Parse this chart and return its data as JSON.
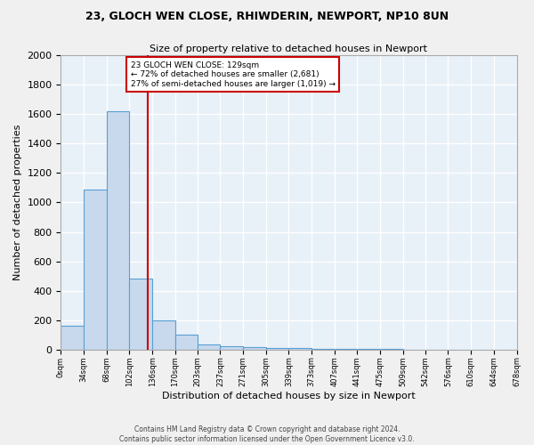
{
  "title1": "23, GLOCH WEN CLOSE, RHIWDERIN, NEWPORT, NP10 8UN",
  "title2": "Size of property relative to detached houses in Newport",
  "xlabel": "Distribution of detached houses by size in Newport",
  "ylabel": "Number of detached properties",
  "bar_color": "#c8d9ed",
  "bar_edge_color": "#5a9fd4",
  "background_color": "#e8f0f8",
  "grid_color": "#ffffff",
  "fig_background": "#f0f0f0",
  "bin_edges": [
    0,
    34,
    68,
    102,
    136,
    170,
    203,
    237,
    271,
    305,
    339,
    373,
    407,
    441,
    475,
    509,
    542,
    576,
    610,
    644,
    678
  ],
  "bar_heights": [
    165,
    1085,
    1620,
    480,
    200,
    100,
    38,
    25,
    15,
    10,
    8,
    5,
    3,
    2,
    2,
    1,
    1,
    0,
    0,
    0
  ],
  "tick_labels": [
    "0sqm",
    "34sqm",
    "68sqm",
    "102sqm",
    "136sqm",
    "170sqm",
    "203sqm",
    "237sqm",
    "271sqm",
    "305sqm",
    "339sqm",
    "373sqm",
    "407sqm",
    "441sqm",
    "475sqm",
    "509sqm",
    "542sqm",
    "576sqm",
    "610sqm",
    "644sqm",
    "678sqm"
  ],
  "red_line_x": 129,
  "annotation_text": "23 GLOCH WEN CLOSE: 129sqm\n← 72% of detached houses are smaller (2,681)\n27% of semi-detached houses are larger (1,019) →",
  "annotation_box_color": "#ffffff",
  "annotation_box_edge": "#cc0000",
  "ylim": [
    0,
    2000
  ],
  "yticks": [
    0,
    200,
    400,
    600,
    800,
    1000,
    1200,
    1400,
    1600,
    1800,
    2000
  ],
  "footer_text": "Contains HM Land Registry data © Crown copyright and database right 2024.\nContains public sector information licensed under the Open Government Licence v3.0.",
  "red_line_color": "#cc0000",
  "title1_fontsize": 9,
  "title2_fontsize": 8,
  "ylabel_fontsize": 8,
  "xlabel_fontsize": 8,
  "ytick_fontsize": 8,
  "xtick_fontsize": 6
}
